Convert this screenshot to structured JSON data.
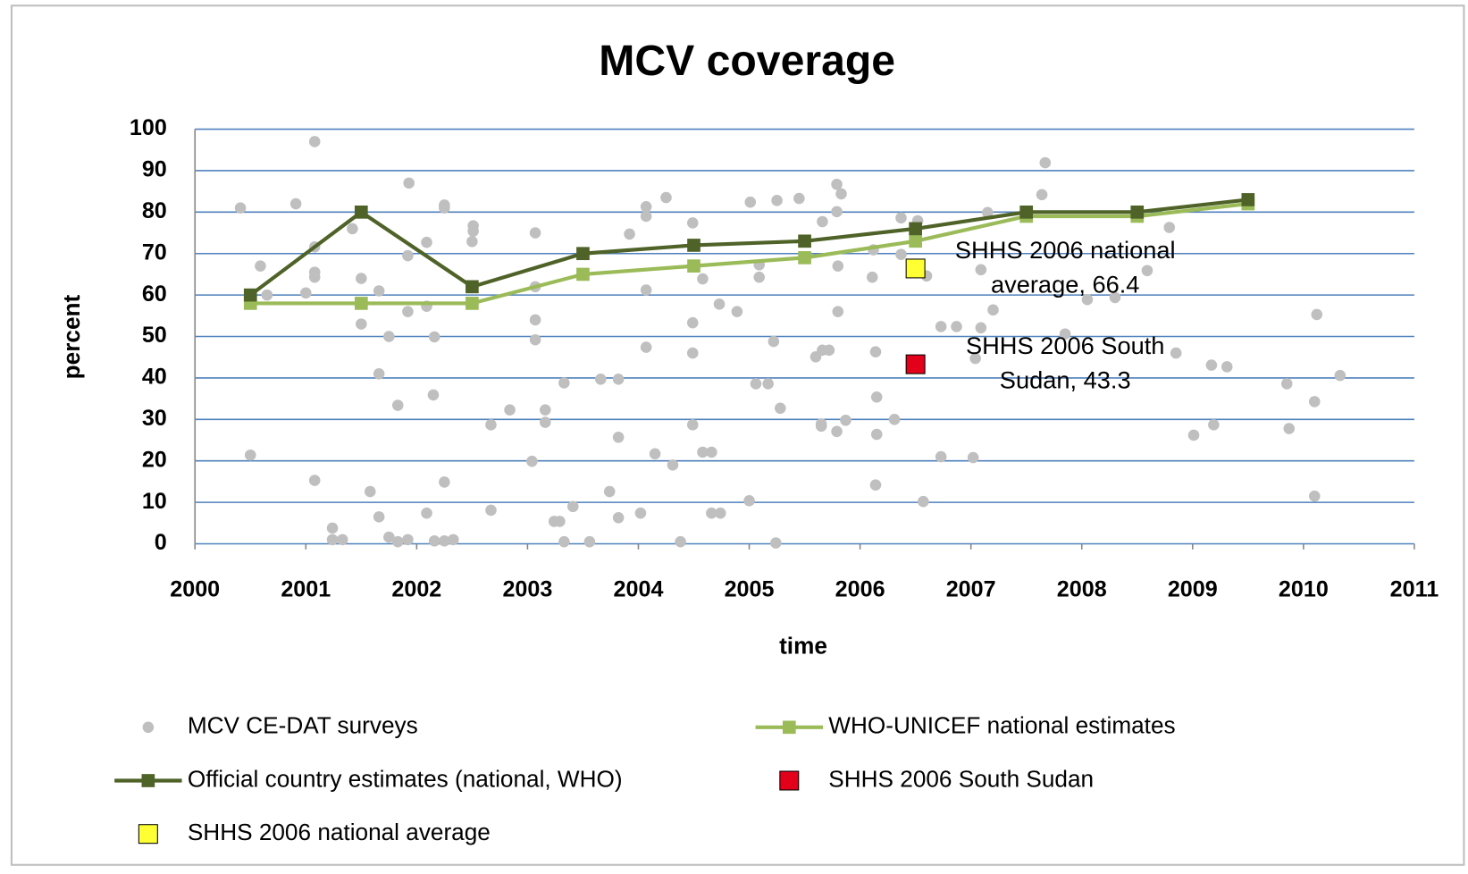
{
  "chart_data": {
    "type": "combo",
    "title": "MCV coverage",
    "x_label": "time",
    "y_label": "percent",
    "xlim": [
      2000,
      2011
    ],
    "xticks": [
      2000,
      2001,
      2002,
      2003,
      2004,
      2005,
      2006,
      2007,
      2008,
      2009,
      2010,
      2011
    ],
    "ylim": [
      0,
      100
    ],
    "yticks": [
      0,
      10,
      20,
      30,
      40,
      50,
      60,
      70,
      80,
      90,
      100
    ],
    "grid": true,
    "legend": "bottom",
    "series": [
      {
        "name": "MCV CE-DAT surveys",
        "type": "scatter",
        "color": "#bfbfbf",
        "x": [
          2000.41,
          2000.5,
          2000.59,
          2000.65,
          2000.91,
          2001.08,
          2001.08,
          2001.08,
          2001.08,
          2001.0,
          2001.08,
          2001.24,
          2001.24,
          2001.33,
          2001.42,
          2001.5,
          2001.5,
          2001.66,
          2001.66,
          2001.58,
          2001.75,
          2001.83,
          2001.66,
          2001.75,
          2001.83,
          2001.92,
          2001.93,
          2001.92,
          2001.92,
          2002.09,
          2002.09,
          2002.09,
          2002.16,
          2002.15,
          2002.16,
          2002.25,
          2002.33,
          2002.25,
          2002.25,
          2002.51,
          2002.51,
          2002.5,
          2002.25,
          2002.67,
          2002.67,
          2002.84,
          2003.07,
          2003.07,
          2003.07,
          2003.07,
          2003.04,
          2003.16,
          2003.16,
          2003.24,
          2003.29,
          2003.33,
          2003.41,
          2003.33,
          2003.56,
          2003.66,
          2003.82,
          2003.74,
          2003.82,
          2003.82,
          2003.92,
          2004.07,
          2004.07,
          2004.07,
          2004.07,
          2004.02,
          2004.15,
          2004.25,
          2004.31,
          2004.38,
          2004.49,
          2004.49,
          2004.49,
          2004.49,
          2004.58,
          2004.58,
          2004.66,
          2004.66,
          2004.74,
          2004.73,
          2004.89,
          2005.01,
          2005.0,
          2005.09,
          2005.09,
          2005.06,
          2005.17,
          2005.22,
          2005.25,
          2005.28,
          2005.24,
          2005.45,
          2005.6,
          2005.66,
          2005.66,
          2005.72,
          2005.65,
          2005.65,
          2005.79,
          2005.83,
          2005.79,
          2005.8,
          2005.8,
          2005.79,
          2005.87,
          2006.12,
          2006.11,
          2006.14,
          2006.15,
          2006.15,
          2006.14,
          2006.31,
          2006.37,
          2006.37,
          2006.52,
          2006.6,
          2006.57,
          2006.73,
          2006.73,
          2006.87,
          2007.02,
          2007.04,
          2007.09,
          2007.09,
          2007.15,
          2007.2,
          2007.64,
          2007.67,
          2007.85,
          2008.05,
          2008.3,
          2008.59,
          2008.79,
          2008.85,
          2009.01,
          2009.17,
          2009.31,
          2009.19,
          2009.85,
          2009.87,
          2010.1,
          2010.12,
          2010.1,
          2010.33
        ],
        "values": [
          81,
          21.4,
          67,
          60,
          82,
          97,
          71.6,
          65.5,
          64.3,
          60.5,
          15.3,
          3.8,
          1,
          1,
          76,
          64,
          53,
          61,
          41,
          12.6,
          50,
          33.4,
          6.5,
          1.6,
          0.5,
          1,
          87,
          69.5,
          56,
          72.7,
          57.3,
          7.4,
          49.9,
          35.9,
          0.7,
          0.7,
          1,
          81.7,
          81,
          75.4,
          76.7,
          72.9,
          14.9,
          8.1,
          28.7,
          32.3,
          75,
          54,
          49.2,
          62,
          19.9,
          32.3,
          29.3,
          5.4,
          5.4,
          38.8,
          9,
          0.5,
          0.5,
          39.7,
          39.7,
          12.6,
          6.3,
          25.7,
          74.7,
          81.3,
          79,
          61.2,
          47.4,
          7.4,
          21.7,
          83.5,
          19,
          0.5,
          77.4,
          53.3,
          46,
          28.7,
          63.9,
          22.1,
          22.1,
          7.4,
          7.4,
          57.8,
          56,
          82.4,
          10.4,
          67.3,
          64.3,
          38.6,
          38.6,
          48.8,
          82.8,
          32.7,
          0.2,
          83.3,
          45.1,
          77.7,
          46.7,
          46.7,
          28.9,
          28.4,
          86.7,
          84.4,
          80.1,
          67,
          56,
          27.1,
          29.8,
          70.9,
          64.3,
          46.3,
          35.4,
          26.4,
          14.2,
          30,
          78.6,
          69.8,
          77.9,
          64.6,
          10.2,
          52.4,
          21,
          52.4,
          20.8,
          44.7,
          52.1,
          66.1,
          79.9,
          56.4,
          84.2,
          91.9,
          50.6,
          58.9,
          59.4,
          65.9,
          76.3,
          46,
          26.2,
          43.1,
          42.7,
          28.7,
          38.6,
          27.8,
          34.3,
          55.3,
          11.5,
          40.6
        ]
      },
      {
        "name": "WHO-UNICEF national estimates",
        "type": "line",
        "color": "#9bbb59",
        "x": [
          2000.5,
          2001.5,
          2002.5,
          2003.5,
          2004.5,
          2005.5,
          2006.5,
          2007.5,
          2008.5,
          2009.5
        ],
        "values": [
          58,
          58,
          58,
          65,
          67,
          69,
          73,
          79,
          79,
          82
        ]
      },
      {
        "name": "Official country estimates (national, WHO)",
        "type": "line",
        "color": "#4f6228",
        "x": [
          2000.5,
          2001.5,
          2002.5,
          2003.5,
          2004.5,
          2005.5,
          2006.5,
          2007.5,
          2008.5,
          2009.5
        ],
        "values": [
          60,
          80,
          62,
          70,
          72,
          73,
          76,
          80,
          80,
          83
        ]
      },
      {
        "name": "SHHS 2006 South Sudan",
        "type": "square",
        "color": "#e3001b",
        "x": [
          2006.5
        ],
        "values": [
          43.3
        ],
        "label_lines": [
          "SHHS 2006 South",
          "Sudan, 43.3"
        ]
      },
      {
        "name": "SHHS 2006 national average",
        "type": "square",
        "color": "#ffff33",
        "x": [
          2006.5
        ],
        "values": [
          66.4
        ],
        "label_lines": [
          "SHHS 2006 national",
          "average, 66.4"
        ]
      }
    ]
  }
}
